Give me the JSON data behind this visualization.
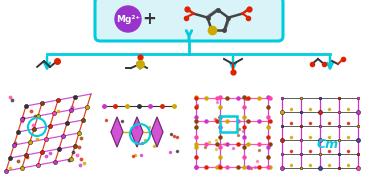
{
  "bg_color": "#ffffff",
  "cyan_color": "#00ccdd",
  "mg_color": "#9933cc",
  "mg_text": "Mg²⁺",
  "plus_text": "+",
  "cm_text": "Cm",
  "cm_color": "#00ccdd",
  "box_bg": "#d8f4f8",
  "box_edge": "#00ccdd",
  "purple": "#cc33cc",
  "red": "#dd2200",
  "dark": "#333333",
  "yellow": "#ccaa00",
  "pink": "#ff44aa",
  "gray": "#888888",
  "tdc_dark": "#444444",
  "tdc_yellow": "#ccaa00",
  "tdc_red": "#dd2200"
}
